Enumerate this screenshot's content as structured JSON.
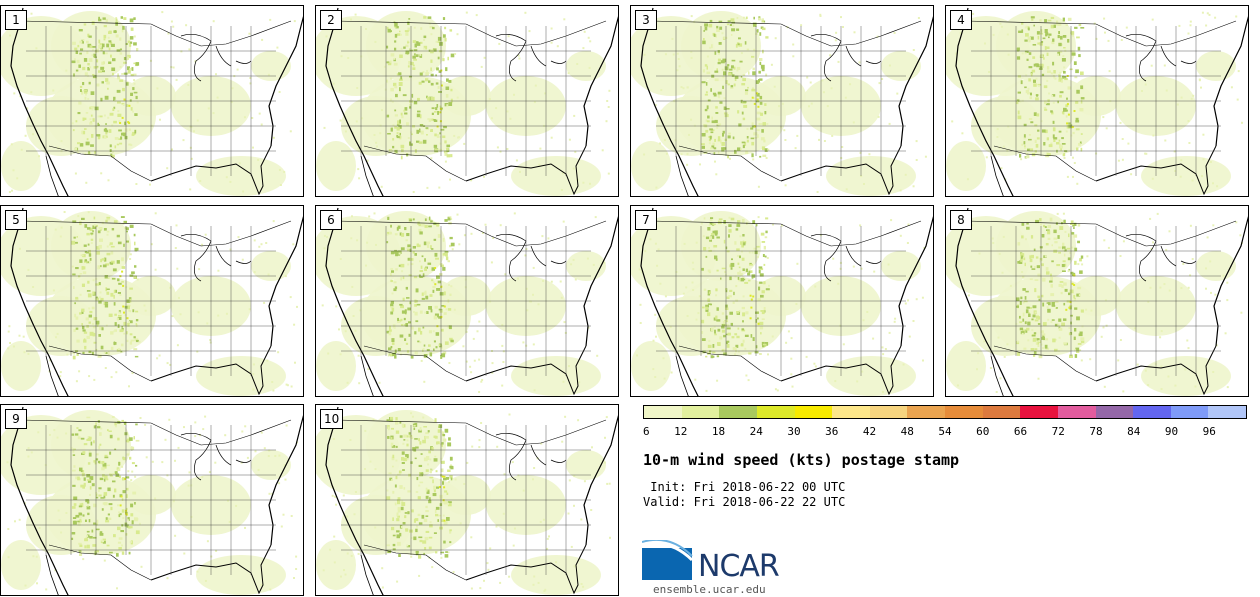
{
  "panels": [
    {
      "label": "1"
    },
    {
      "label": "2"
    },
    {
      "label": "3"
    },
    {
      "label": "4"
    },
    {
      "label": "5"
    },
    {
      "label": "6"
    },
    {
      "label": "7"
    },
    {
      "label": "8"
    },
    {
      "label": "9"
    },
    {
      "label": "10"
    }
  ],
  "colorbar": {
    "colors": [
      "#f0f6c8",
      "#e2f09e",
      "#a9c95e",
      "#dde92a",
      "#f7ea00",
      "#fde78a",
      "#f6d47f",
      "#eaa450",
      "#e68c3a",
      "#dd7a3e",
      "#e8123e",
      "#e25c9e",
      "#9467a8",
      "#6366f0",
      "#7f9bf8",
      "#b1c6f8"
    ],
    "ticks": [
      "6",
      "12",
      "18",
      "24",
      "30",
      "36",
      "42",
      "48",
      "54",
      "60",
      "66",
      "72",
      "78",
      "84",
      "90",
      "96"
    ]
  },
  "title": "10-m wind speed (kts) postage stamp",
  "init": " Init: Fri 2018-06-22 00 UTC",
  "valid": "Valid: Fri 2018-06-22 22 UTC",
  "logo": {
    "text": "NCAR",
    "url": "ensemble.ucar.edu"
  }
}
